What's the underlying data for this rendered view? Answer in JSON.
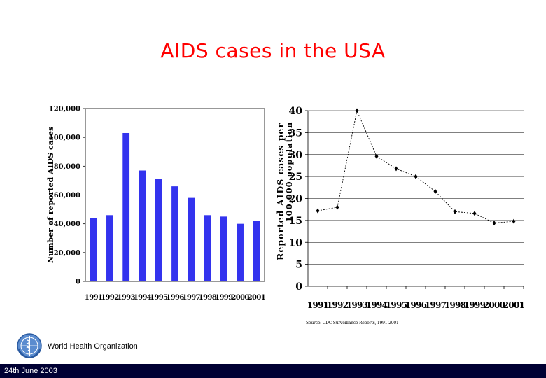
{
  "slide": {
    "title": "AIDS cases in the USA",
    "organization": "World Health Organization",
    "footer_date": "24th June  2003",
    "source_note": "Source: CDC Surveillance Reports, 1991-2001",
    "logo_icon": "who-emblem-icon",
    "title_color": "#ff0000",
    "footer_color": "#000033"
  },
  "chart_data": [
    {
      "type": "bar",
      "title": "",
      "ylabel": "Number of reported AIDS cases",
      "xlabel": "",
      "categories": [
        "1991",
        "1992",
        "1993",
        "1994",
        "1995",
        "1996",
        "1997",
        "1998",
        "1999",
        "2000",
        "2001"
      ],
      "values": [
        44000,
        46000,
        103000,
        77000,
        71000,
        66000,
        58000,
        46000,
        45000,
        40000,
        42000
      ],
      "ylim": [
        0,
        120000
      ],
      "yticks": [
        0,
        20000,
        40000,
        60000,
        80000,
        100000,
        120000
      ],
      "ytick_labels": [
        "0",
        "20,000",
        "40,000",
        "60,000",
        "80,000",
        "100,000",
        "120,000"
      ],
      "bar_color": "#3333ee",
      "grid": false,
      "legend": "none"
    },
    {
      "type": "line",
      "title": "",
      "ylabel": "Reported AIDS cases per 100,000 population",
      "xlabel": "",
      "categories": [
        "1991",
        "1992",
        "1993",
        "1994",
        "1995",
        "1996",
        "1997",
        "1998",
        "1999",
        "2000",
        "2001"
      ],
      "values": [
        17.2,
        18.0,
        40.0,
        29.6,
        26.8,
        25.0,
        21.6,
        17.0,
        16.6,
        14.4,
        14.8
      ],
      "ylim": [
        0,
        40
      ],
      "yticks": [
        0,
        5,
        10,
        15,
        20,
        25,
        30,
        35,
        40
      ],
      "line_style": "dotted",
      "marker": "diamond",
      "grid": "horizontal",
      "legend": "none"
    }
  ]
}
